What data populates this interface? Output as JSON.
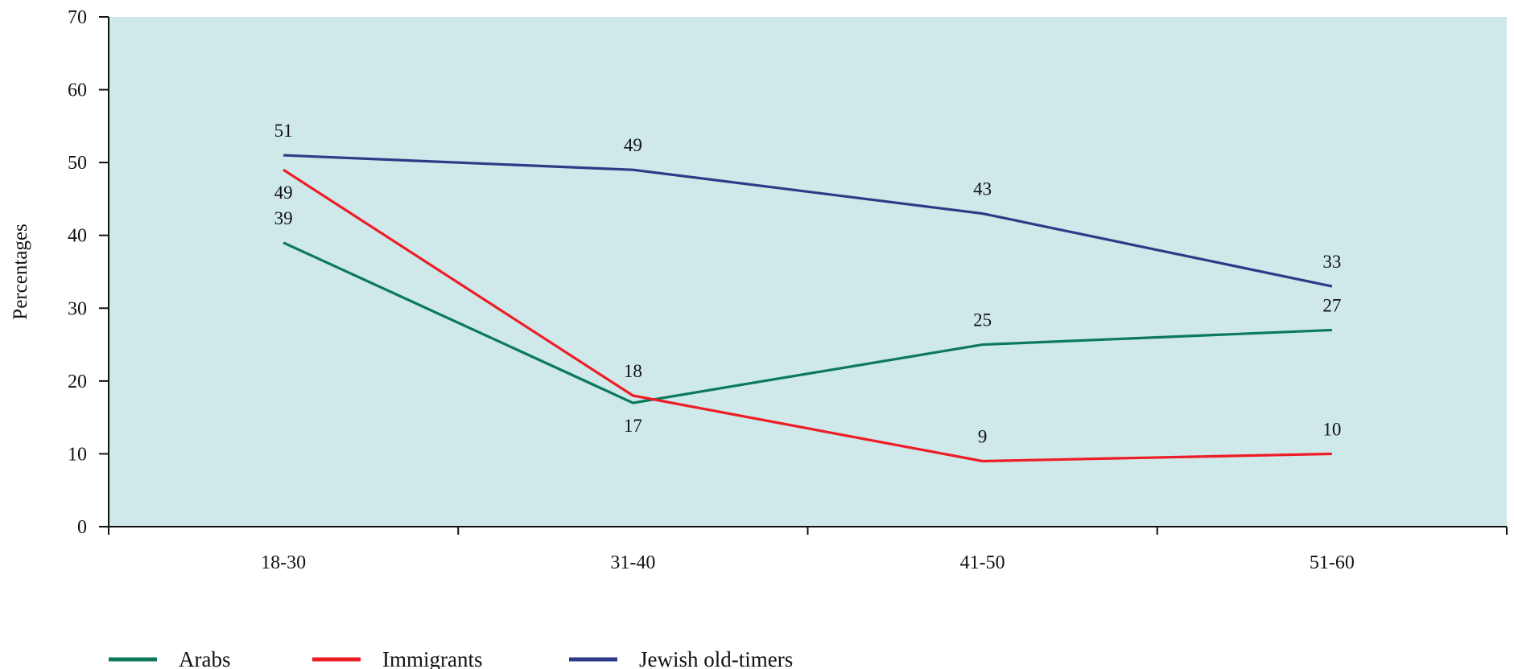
{
  "chart_data": {
    "type": "line",
    "title": "",
    "xlabel": "",
    "ylabel": "Percentages",
    "categories": [
      "18-30",
      "31-40",
      "41-50",
      "51-60"
    ],
    "ylim": [
      0,
      70
    ],
    "yticks": [
      0,
      10,
      20,
      30,
      40,
      50,
      60,
      70
    ],
    "grid": false,
    "plot_background": "#cfe8ea",
    "legend_position": "bottom-left",
    "series": [
      {
        "name": "Arabs",
        "color": "#0b7a5a",
        "values": [
          39,
          17,
          25,
          27
        ],
        "label_offsets": [
          "above",
          "below",
          "above",
          "above"
        ]
      },
      {
        "name": "Immigrants",
        "color": "#ee1c25",
        "values": [
          49,
          18,
          9,
          10
        ],
        "label_offsets": [
          "below",
          "above",
          "above",
          "above"
        ]
      },
      {
        "name": "Jewish old-timers",
        "color": "#2e3a87",
        "values": [
          51,
          49,
          43,
          33
        ],
        "label_offsets": [
          "above",
          "above",
          "above",
          "above"
        ]
      }
    ]
  }
}
